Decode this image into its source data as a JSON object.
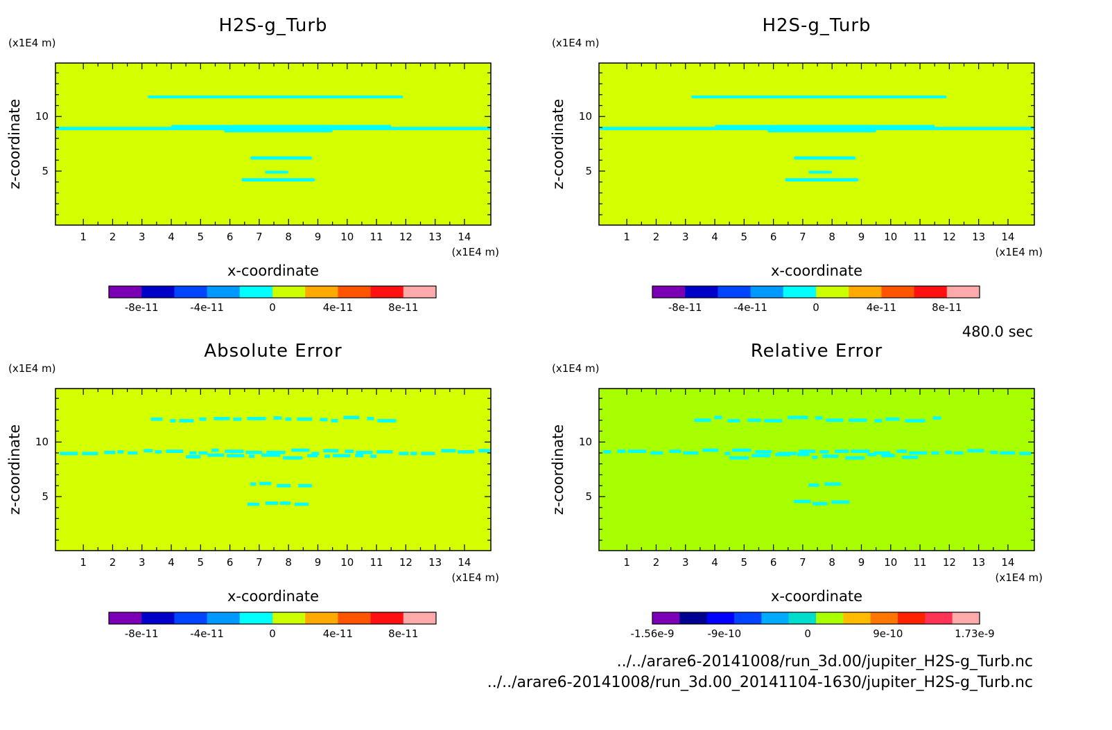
{
  "time_label": "480.0 sec",
  "file_paths": [
    "../../arare6-20141008/run_3d.00/jupiter_H2S-g_Turb.nc",
    "../../arare6-20141008/run_3d.00_20141104-1630/jupiter_H2S-g_Turb.nc"
  ],
  "colors": {
    "field_background": "#d4ff00",
    "contour": "#00ffff",
    "relative_background": "#a8ff00"
  },
  "chart_data": [
    {
      "type": "heatmap",
      "title": "H2S-g_Turb",
      "xlabel": "x-coordinate",
      "ylabel": "z-coordinate",
      "x_unit": "(x1E4 m)",
      "z_unit": "(x1E4 m)",
      "xlim": [
        0.05,
        14.9
      ],
      "zlim": [
        0.05,
        14.9
      ],
      "x_ticks": [
        "1",
        "2",
        "3",
        "4",
        "5",
        "6",
        "7",
        "8",
        "9",
        "10",
        "11",
        "12",
        "13",
        "14"
      ],
      "z_ticks": [
        "5",
        "10"
      ],
      "background_value": 0,
      "contour_features": [
        {
          "x0": 3.2,
          "x1": 11.9,
          "z": 11.8,
          "thickness": 0.25
        },
        {
          "x0": 0.05,
          "x1": 14.9,
          "z": 8.9,
          "thickness": 0.3
        },
        {
          "x0": 4.0,
          "x1": 11.5,
          "z": 9.1,
          "thickness": 0.25
        },
        {
          "x0": 5.8,
          "x1": 9.5,
          "z": 8.7,
          "thickness": 0.3
        },
        {
          "x0": 6.7,
          "x1": 8.8,
          "z": 6.2,
          "thickness": 0.3
        },
        {
          "x0": 7.2,
          "x1": 8.0,
          "z": 4.9,
          "thickness": 0.2
        },
        {
          "x0": 6.4,
          "x1": 8.9,
          "z": 4.2,
          "thickness": 0.3
        }
      ],
      "colorbar": {
        "colors": [
          "#7b00b5",
          "#0000c8",
          "#0044ff",
          "#0099ff",
          "#00ffff",
          "#ccff00",
          "#ffaa00",
          "#ff5500",
          "#ff1111",
          "#ffaaaa"
        ],
        "tick_labels": [
          "-8e-11",
          "-4e-11",
          "0",
          "4e-11",
          "8e-11"
        ]
      }
    },
    {
      "type": "heatmap",
      "title": "H2S-g_Turb",
      "xlabel": "x-coordinate",
      "ylabel": "z-coordinate",
      "x_unit": "(x1E4 m)",
      "z_unit": "(x1E4 m)",
      "xlim": [
        0.05,
        14.9
      ],
      "zlim": [
        0.05,
        14.9
      ],
      "x_ticks": [
        "1",
        "2",
        "3",
        "4",
        "5",
        "6",
        "7",
        "8",
        "9",
        "10",
        "11",
        "12",
        "13",
        "14"
      ],
      "z_ticks": [
        "5",
        "10"
      ],
      "background_value": 0,
      "contour_features": [
        {
          "x0": 3.2,
          "x1": 11.9,
          "z": 11.8,
          "thickness": 0.25
        },
        {
          "x0": 0.05,
          "x1": 14.9,
          "z": 8.9,
          "thickness": 0.3
        },
        {
          "x0": 4.0,
          "x1": 11.5,
          "z": 9.1,
          "thickness": 0.25
        },
        {
          "x0": 5.8,
          "x1": 9.5,
          "z": 8.7,
          "thickness": 0.3
        },
        {
          "x0": 6.7,
          "x1": 8.8,
          "z": 6.2,
          "thickness": 0.3
        },
        {
          "x0": 7.2,
          "x1": 8.0,
          "z": 4.9,
          "thickness": 0.2
        },
        {
          "x0": 6.4,
          "x1": 8.9,
          "z": 4.2,
          "thickness": 0.3
        }
      ],
      "colorbar": {
        "colors": [
          "#7b00b5",
          "#0000c8",
          "#0044ff",
          "#0099ff",
          "#00ffff",
          "#ccff00",
          "#ffaa00",
          "#ff5500",
          "#ff1111",
          "#ffaaaa"
        ],
        "tick_labels": [
          "-8e-11",
          "-4e-11",
          "0",
          "4e-11",
          "8e-11"
        ]
      }
    },
    {
      "type": "heatmap",
      "title": "Absolute Error",
      "xlabel": "x-coordinate",
      "ylabel": "z-coordinate",
      "x_unit": "(x1E4 m)",
      "z_unit": "(x1E4 m)",
      "xlim": [
        0.05,
        14.9
      ],
      "zlim": [
        0.05,
        14.9
      ],
      "x_ticks": [
        "1",
        "2",
        "3",
        "4",
        "5",
        "6",
        "7",
        "8",
        "9",
        "10",
        "11",
        "12",
        "13",
        "14"
      ],
      "z_ticks": [
        "5",
        "10"
      ],
      "background_value": 0,
      "contour_features": [
        {
          "x0": 3.3,
          "x1": 11.8,
          "z": 12.1,
          "thickness": 0.3,
          "dashed": true
        },
        {
          "x0": 0.2,
          "x1": 14.9,
          "z": 9.1,
          "thickness": 0.3,
          "dashed": true
        },
        {
          "x0": 4.5,
          "x1": 11.0,
          "z": 8.7,
          "thickness": 0.3,
          "dashed": true
        },
        {
          "x0": 6.7,
          "x1": 8.8,
          "z": 6.1,
          "thickness": 0.3,
          "dashed": true
        },
        {
          "x0": 6.6,
          "x1": 8.7,
          "z": 4.4,
          "thickness": 0.3,
          "dashed": true
        }
      ],
      "colorbar": {
        "colors": [
          "#7b00b5",
          "#0000c8",
          "#0044ff",
          "#0099ff",
          "#00ffff",
          "#ccff00",
          "#ffaa00",
          "#ff5500",
          "#ff1111",
          "#ffaaaa"
        ],
        "tick_labels": [
          "-8e-11",
          "-4e-11",
          "0",
          "4e-11",
          "8e-11"
        ]
      }
    },
    {
      "type": "heatmap",
      "title": "Relative Error",
      "xlabel": "x-coordinate",
      "ylabel": "z-coordinate",
      "x_unit": "(x1E4 m)",
      "z_unit": "(x1E4 m)",
      "xlim": [
        0.05,
        14.9
      ],
      "zlim": [
        0.05,
        14.9
      ],
      "x_ticks": [
        "1",
        "2",
        "3",
        "4",
        "5",
        "6",
        "7",
        "8",
        "9",
        "10",
        "11",
        "12",
        "13",
        "14"
      ],
      "z_ticks": [
        "5",
        "10"
      ],
      "background_value": 0,
      "contour_features": [
        {
          "x0": 3.3,
          "x1": 11.8,
          "z": 12.1,
          "thickness": 0.3,
          "dashed": true
        },
        {
          "x0": 0.2,
          "x1": 14.9,
          "z": 9.1,
          "thickness": 0.3,
          "dashed": true
        },
        {
          "x0": 4.5,
          "x1": 11.0,
          "z": 8.7,
          "thickness": 0.3,
          "dashed": true
        },
        {
          "x0": 7.2,
          "x1": 8.3,
          "z": 6.1,
          "thickness": 0.3,
          "dashed": true
        },
        {
          "x0": 6.7,
          "x1": 8.7,
          "z": 4.4,
          "thickness": 0.3,
          "dashed": true
        }
      ],
      "colorbar": {
        "colors": [
          "#7b00b5",
          "#000090",
          "#0000ff",
          "#0044ff",
          "#00aaff",
          "#00ddcc",
          "#aaff00",
          "#ffbb00",
          "#ff7700",
          "#ff2200",
          "#ff3355",
          "#ffaaaa"
        ],
        "tick_labels": [
          "-1.56e-9",
          "-9e-10",
          "0",
          "9e-10",
          "1.73e-9"
        ]
      }
    }
  ]
}
